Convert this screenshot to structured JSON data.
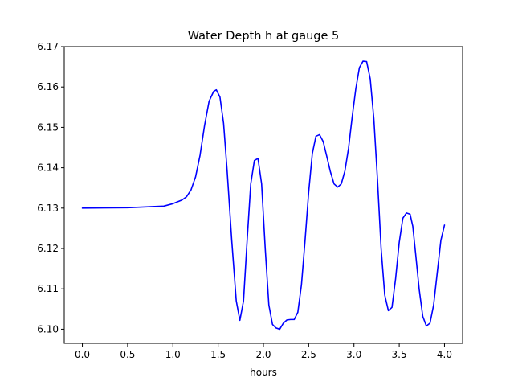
{
  "chart_data": {
    "type": "line",
    "title": "Water Depth h at gauge 5",
    "xlabel": "hours",
    "ylabel": "",
    "xlim": [
      -0.2,
      4.2
    ],
    "ylim": [
      6.0965,
      6.17
    ],
    "x_ticks": [
      0.0,
      0.5,
      1.0,
      1.5,
      2.0,
      2.5,
      3.0,
      3.5,
      4.0
    ],
    "x_tick_labels": [
      "0.0",
      "0.5",
      "1.0",
      "1.5",
      "2.0",
      "2.5",
      "3.0",
      "3.5",
      "4.0"
    ],
    "y_ticks": [
      6.1,
      6.11,
      6.12,
      6.13,
      6.14,
      6.15,
      6.16,
      6.17
    ],
    "y_tick_labels": [
      "6.10",
      "6.11",
      "6.12",
      "6.13",
      "6.14",
      "6.15",
      "6.16",
      "6.17"
    ],
    "grid": false,
    "series": [
      {
        "color": "#0000ff",
        "x": [
          0.0,
          0.5,
          0.8,
          0.9,
          1.0,
          1.1,
          1.15,
          1.2,
          1.25,
          1.3,
          1.35,
          1.4,
          1.45,
          1.48,
          1.52,
          1.56,
          1.6,
          1.65,
          1.7,
          1.74,
          1.78,
          1.82,
          1.86,
          1.9,
          1.94,
          1.98,
          2.02,
          2.06,
          2.1,
          2.14,
          2.18,
          2.22,
          2.26,
          2.3,
          2.34,
          2.38,
          2.42,
          2.46,
          2.5,
          2.54,
          2.58,
          2.62,
          2.66,
          2.7,
          2.74,
          2.78,
          2.82,
          2.86,
          2.9,
          2.94,
          2.98,
          3.02,
          3.06,
          3.1,
          3.14,
          3.18,
          3.22,
          3.26,
          3.3,
          3.34,
          3.38,
          3.42,
          3.46,
          3.5,
          3.54,
          3.58,
          3.62,
          3.65,
          3.68,
          3.72,
          3.76,
          3.8,
          3.84,
          3.88,
          3.92,
          3.96,
          4.0
        ],
        "y": [
          6.13,
          6.1301,
          6.1304,
          6.1305,
          6.1311,
          6.132,
          6.1328,
          6.1345,
          6.1377,
          6.1431,
          6.1505,
          6.1565,
          6.1589,
          6.1593,
          6.1575,
          6.151,
          6.139,
          6.122,
          6.107,
          6.1022,
          6.107,
          6.122,
          6.136,
          6.1418,
          6.1423,
          6.136,
          6.12,
          6.106,
          6.1012,
          6.1003,
          6.1,
          6.1015,
          6.1023,
          6.1024,
          6.1024,
          6.1042,
          6.111,
          6.122,
          6.134,
          6.1435,
          6.1478,
          6.1482,
          6.1465,
          6.1428,
          6.139,
          6.136,
          6.1352,
          6.136,
          6.1392,
          6.1448,
          6.1525,
          6.1595,
          6.1648,
          6.1664,
          6.1663,
          6.162,
          6.152,
          6.137,
          6.12,
          6.1085,
          6.1046,
          6.1054,
          6.1125,
          6.1215,
          6.1275,
          6.1288,
          6.1285,
          6.1255,
          6.119,
          6.11,
          6.1032,
          6.1008,
          6.1015,
          6.106,
          6.114,
          6.122,
          6.1258
        ]
      }
    ]
  }
}
